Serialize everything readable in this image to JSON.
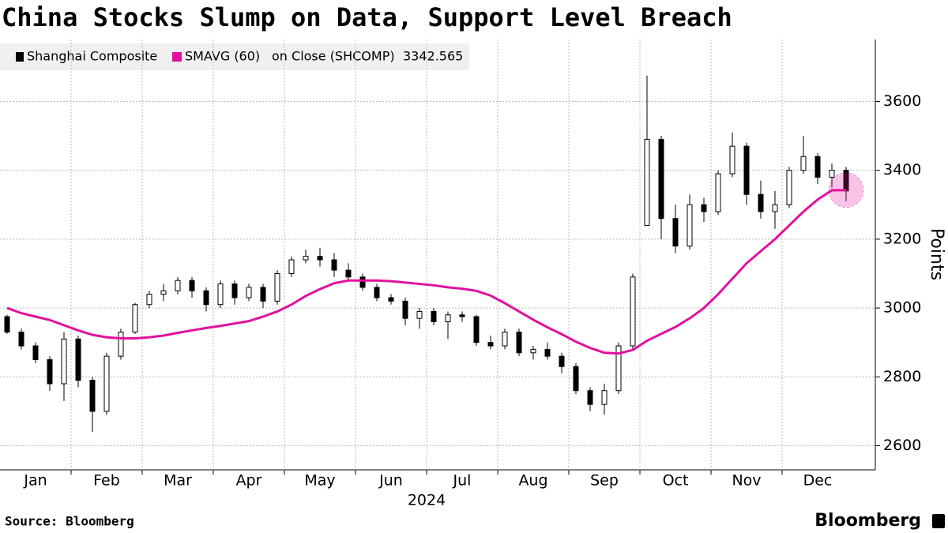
{
  "chart_data": {
    "type": "candlestick",
    "title": "China Stocks Slump on Data, Support Level Breach",
    "source": "Source: Bloomberg",
    "logo": "Bloomberg",
    "y_label": "Points",
    "x_label": "2024",
    "legend_note": "on Close (SHCOMP)",
    "ylim": [
      2530,
      3780
    ],
    "yticks": [
      2600,
      2800,
      3000,
      3200,
      3400,
      3600
    ],
    "grid": true,
    "categories": [
      null,
      null,
      "Jan",
      null,
      null,
      null,
      null,
      "Feb",
      null,
      null,
      null,
      null,
      "Mar",
      null,
      null,
      null,
      null,
      "Apr",
      null,
      null,
      null,
      null,
      "May",
      null,
      null,
      null,
      null,
      "Jun",
      null,
      null,
      null,
      null,
      "Jul",
      null,
      null,
      null,
      null,
      "Aug",
      null,
      null,
      null,
      null,
      "Sep",
      null,
      null,
      null,
      null,
      "Oct",
      null,
      null,
      null,
      null,
      "Nov",
      null,
      null,
      null,
      null,
      "Dec",
      null,
      null
    ],
    "series": [
      {
        "name": "Shanghai Composite",
        "color": "#000000",
        "open": [
          2975,
          2930,
          2890,
          2850,
          2780,
          2910,
          2790,
          2700,
          2860,
          2930,
          3010,
          3040,
          3050,
          3080,
          3050,
          3010,
          3070,
          3030,
          3060,
          3020,
          3100,
          3140,
          3150,
          3140,
          3110,
          3090,
          3060,
          3030,
          3020,
          2970,
          2990,
          2960,
          2980,
          2975,
          2900,
          2890,
          2930,
          2870,
          2880,
          2860,
          2830,
          2760,
          2720,
          2760,
          2890,
          3240,
          3490,
          3260,
          3180,
          3300,
          3280,
          3390,
          3470,
          3330,
          3280,
          3300,
          3400,
          3440,
          3380,
          3400
        ],
        "high": [
          2980,
          2940,
          2900,
          2860,
          2930,
          2920,
          2800,
          2870,
          2940,
          3015,
          3050,
          3070,
          3090,
          3090,
          3060,
          3080,
          3080,
          3070,
          3070,
          3110,
          3150,
          3170,
          3175,
          3160,
          3130,
          3100,
          3070,
          3040,
          3030,
          3000,
          3000,
          2990,
          2990,
          2980,
          2920,
          2940,
          2940,
          2890,
          2900,
          2870,
          2840,
          2770,
          2780,
          2900,
          3100,
          3675,
          3500,
          3300,
          3330,
          3320,
          3400,
          3510,
          3480,
          3370,
          3340,
          3410,
          3500,
          3450,
          3420,
          3410
        ],
        "low": [
          2925,
          2880,
          2840,
          2760,
          2730,
          2770,
          2640,
          2690,
          2850,
          2925,
          3000,
          3020,
          3040,
          3030,
          2990,
          3000,
          3010,
          3020,
          3000,
          3010,
          3090,
          3130,
          3120,
          3090,
          3080,
          3050,
          3020,
          3010,
          2950,
          2940,
          2950,
          2910,
          2960,
          2890,
          2880,
          2880,
          2860,
          2850,
          2850,
          2810,
          2750,
          2700,
          2690,
          2750,
          2880,
          3240,
          3200,
          3160,
          3170,
          3250,
          3270,
          3380,
          3300,
          3260,
          3230,
          3290,
          3390,
          3360,
          3350,
          3310
        ],
        "close": [
          2930,
          2890,
          2850,
          2780,
          2910,
          2790,
          2700,
          2860,
          2930,
          3010,
          3040,
          3050,
          3080,
          3050,
          3010,
          3070,
          3030,
          3060,
          3020,
          3100,
          3140,
          3150,
          3140,
          3110,
          3090,
          3060,
          3030,
          3020,
          2970,
          2990,
          2960,
          2980,
          2975,
          2900,
          2890,
          2930,
          2870,
          2880,
          2860,
          2830,
          2760,
          2720,
          2760,
          2890,
          3090,
          3490,
          3260,
          3180,
          3300,
          3280,
          3390,
          3470,
          3330,
          3280,
          3300,
          3400,
          3440,
          3380,
          3400,
          3340
        ]
      },
      {
        "name": "SMAVG (60)",
        "color": "#e0119d",
        "values": [
          3000,
          2985,
          2975,
          2965,
          2950,
          2935,
          2922,
          2915,
          2912,
          2912,
          2915,
          2920,
          2928,
          2935,
          2942,
          2948,
          2955,
          2962,
          2975,
          2990,
          3010,
          3035,
          3055,
          3072,
          3080,
          3080,
          3080,
          3078,
          3074,
          3070,
          3066,
          3060,
          3056,
          3050,
          3036,
          3014,
          2990,
          2966,
          2944,
          2924,
          2902,
          2884,
          2870,
          2868,
          2878,
          2905,
          2925,
          2945,
          2970,
          3000,
          3040,
          3085,
          3130,
          3165,
          3200,
          3240,
          3280,
          3315,
          3342,
          3342.565
        ]
      }
    ]
  }
}
